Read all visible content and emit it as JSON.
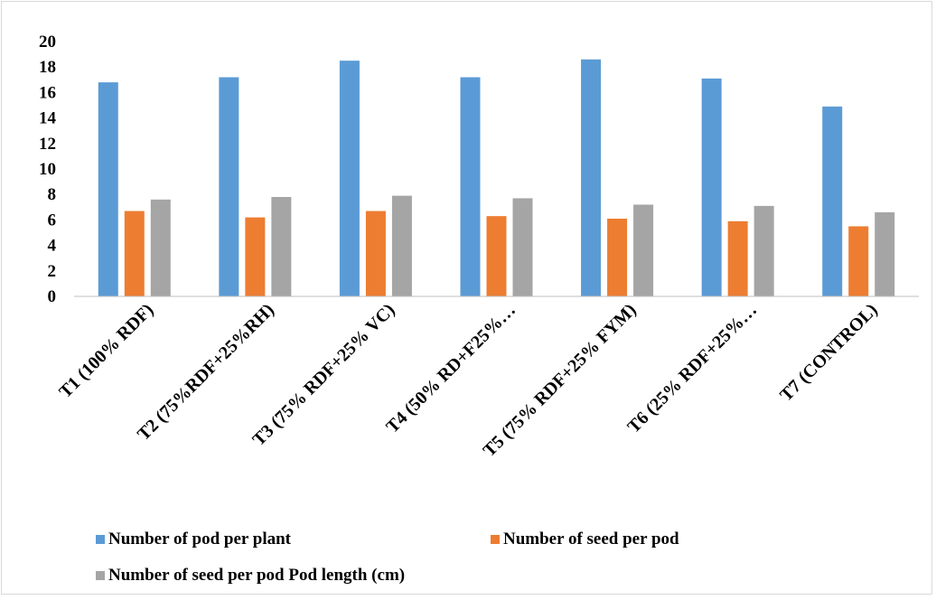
{
  "chart_data": {
    "type": "bar",
    "categories": [
      "T1 (100% RDF)",
      "T2 (75%RDF+25%RH)",
      "T3 (75% RDF+25% VC)",
      "T4 (50% RD+F25%…",
      "T5 (75% RDF+25% FYM)",
      "T6 (25% RDF+25%…",
      "T7 (CONTROL)"
    ],
    "series": [
      {
        "name": "Number of pod per plant",
        "color": "#5b9bd5",
        "values": [
          16.8,
          17.2,
          18.5,
          17.2,
          18.6,
          17.1,
          14.9
        ]
      },
      {
        "name": "Number of seed per pod",
        "color": "#ed7d31",
        "values": [
          6.7,
          6.2,
          6.7,
          6.3,
          6.1,
          5.9,
          5.5
        ]
      },
      {
        "name": "Number of seed per pod Pod length (cm)",
        "color": "#a5a5a5",
        "values": [
          7.6,
          7.8,
          7.9,
          7.7,
          7.2,
          7.1,
          6.6
        ]
      }
    ],
    "ylim": [
      0,
      20
    ],
    "yticks": [
      "0",
      "2",
      "4",
      "6",
      "8",
      "10",
      "12",
      "14",
      "16",
      "18",
      "20"
    ],
    "grid": false,
    "legend_position": "bottom"
  }
}
